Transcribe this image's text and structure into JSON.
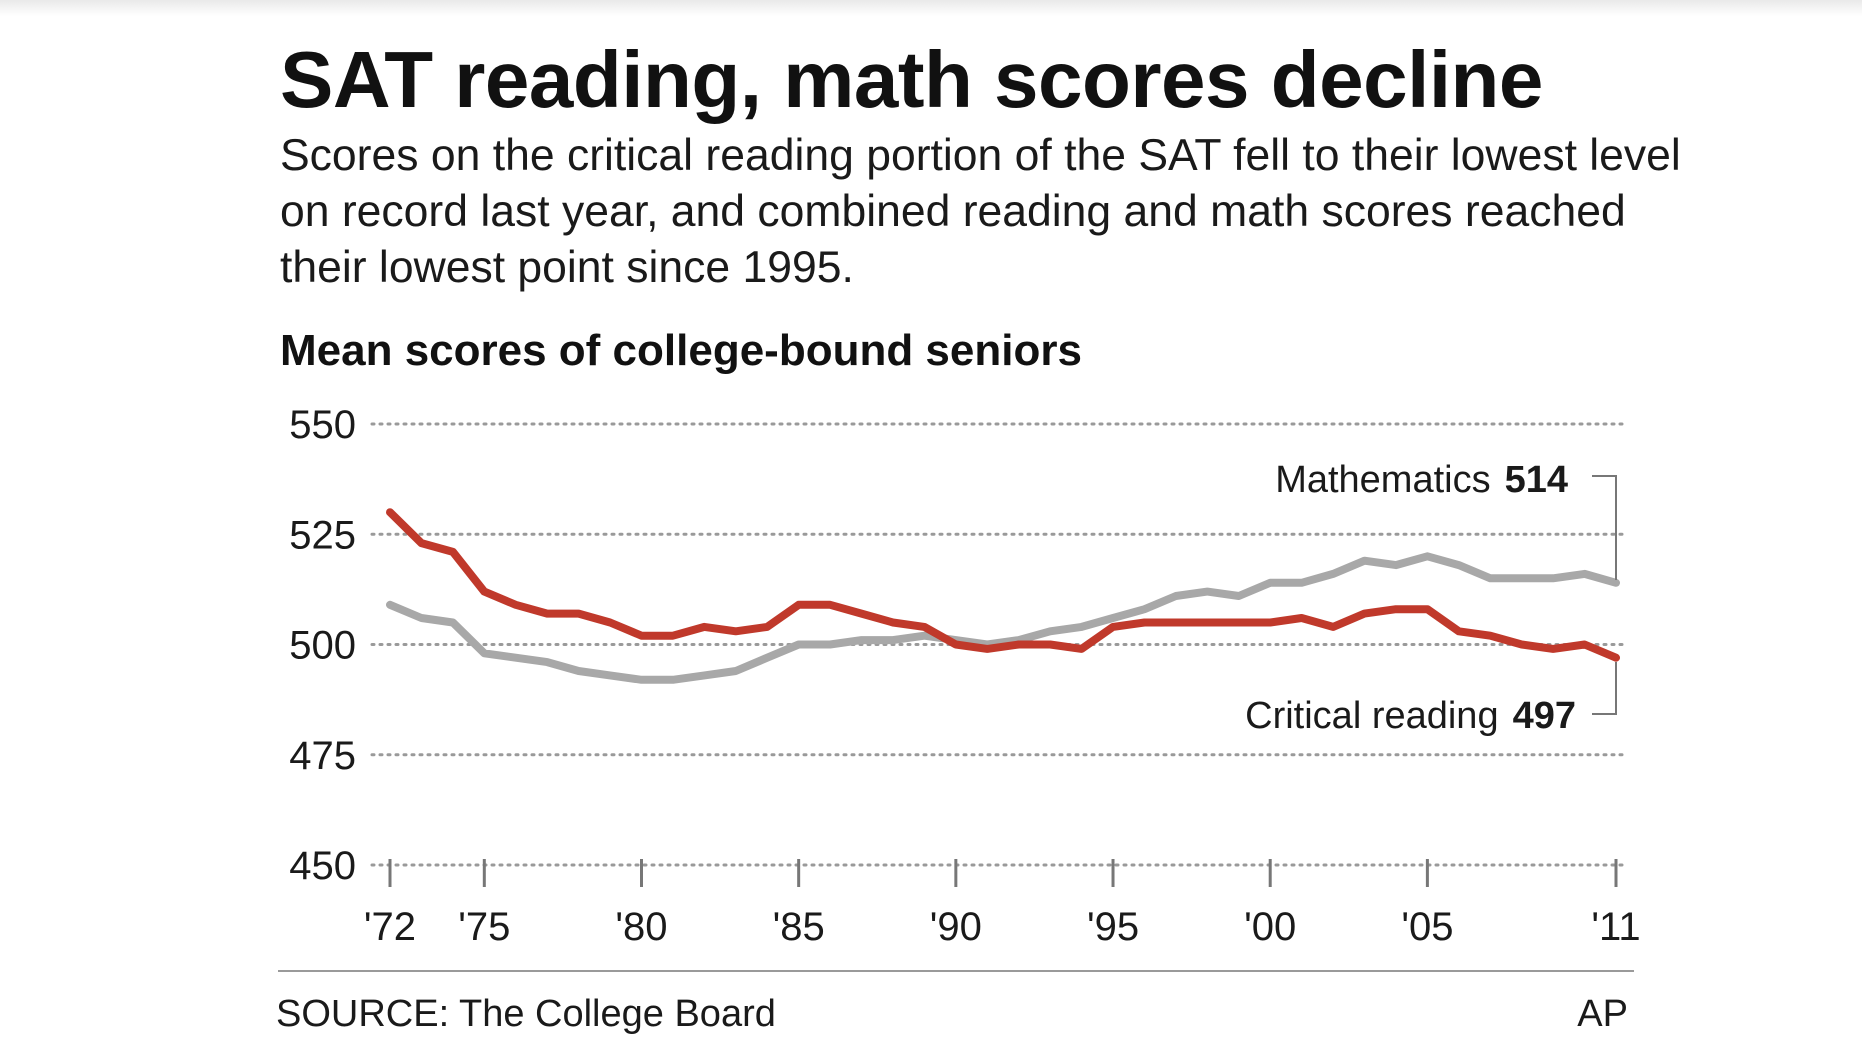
{
  "header": {
    "title": "SAT reading, math scores decline",
    "chatter": "Scores on the critical reading portion of the SAT fell to their lowest level on record last year, and combined reading and math scores reached their lowest point since 1995."
  },
  "footer": {
    "source": "SOURCE: The College Board",
    "credit": "AP"
  },
  "chart_data": {
    "type": "line",
    "title": "Mean scores of college-bound seniors",
    "xlabel": "",
    "ylabel": "",
    "xlim": [
      1972,
      2011
    ],
    "ylim": [
      450,
      550
    ],
    "yticks": [
      550,
      525,
      500,
      475,
      450
    ],
    "xticks": [
      1972,
      1975,
      1980,
      1985,
      1990,
      1995,
      2000,
      2005,
      2011
    ],
    "xtick_labels": [
      "'72",
      "'75",
      "'80",
      "'85",
      "'90",
      "'95",
      "'00",
      "'05",
      "'11"
    ],
    "grid": "horizontal dotted",
    "x": [
      1972,
      1973,
      1974,
      1975,
      1976,
      1977,
      1978,
      1979,
      1980,
      1981,
      1982,
      1983,
      1984,
      1985,
      1986,
      1987,
      1988,
      1989,
      1990,
      1991,
      1992,
      1993,
      1994,
      1995,
      1996,
      1997,
      1998,
      1999,
      2000,
      2001,
      2002,
      2003,
      2004,
      2005,
      2006,
      2007,
      2008,
      2009,
      2010,
      2011
    ],
    "series": [
      {
        "name": "Mathematics",
        "color": "#a8a8a8",
        "end_label_value": "514",
        "values": [
          509,
          506,
          505,
          498,
          497,
          496,
          494,
          493,
          492,
          492,
          493,
          494,
          497,
          500,
          500,
          501,
          501,
          502,
          501,
          500,
          501,
          503,
          504,
          506,
          508,
          511,
          512,
          511,
          514,
          514,
          516,
          519,
          518,
          520,
          518,
          515,
          515,
          515,
          516,
          514
        ]
      },
      {
        "name": "Critical reading",
        "color": "#c0392b",
        "end_label_value": "497",
        "values": [
          530,
          523,
          521,
          512,
          509,
          507,
          507,
          505,
          502,
          502,
          504,
          503,
          504,
          509,
          509,
          507,
          505,
          504,
          500,
          499,
          500,
          500,
          499,
          504,
          505,
          505,
          505,
          505,
          505,
          506,
          504,
          507,
          508,
          508,
          503,
          502,
          500,
          499,
          500,
          497
        ]
      }
    ]
  }
}
